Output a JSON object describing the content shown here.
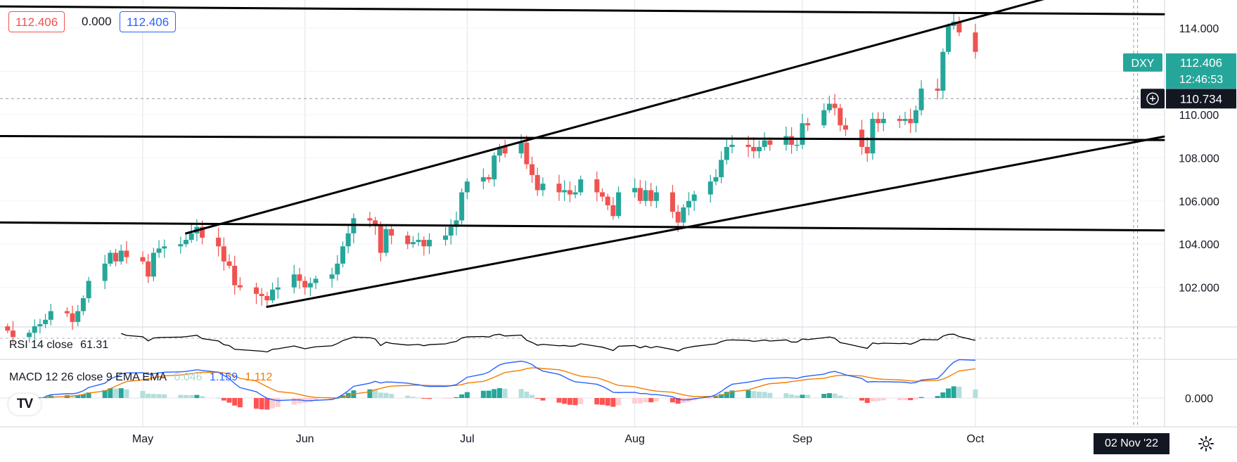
{
  "header": {
    "close_badge": "112.406",
    "spread": "0.000",
    "ask_badge": "112.406"
  },
  "colors": {
    "up": "#26a69a",
    "down": "#ef5350",
    "macd_line": "#2962ff",
    "signal_line": "#f57c00",
    "trendline": "#000000",
    "axis_text": "#131722"
  },
  "chart_data": [
    {
      "type": "candlestick",
      "symbol": "DXY",
      "last_price": "112.406",
      "countdown": "12:46:53",
      "crosshair_price": "110.734",
      "crosshair_date": "02 Nov '22",
      "x_tick_labels": [
        "May",
        "Jun",
        "Jul",
        "Aug",
        "Sep",
        "Oct"
      ],
      "x_tick_dates": [
        "2022-05-02",
        "2022-06-01",
        "2022-07-01",
        "2022-08-01",
        "2022-09-01",
        "2022-10-03"
      ],
      "y_tick_labels": [
        "114.000",
        "112.000",
        "110.000",
        "108.000",
        "106.000",
        "104.000",
        "102.000"
      ],
      "ylim": [
        100.2,
        115.3
      ],
      "grid": true,
      "date_range": [
        "2022-04-07",
        "2022-10-03"
      ],
      "closes": [
        100.0,
        99.7,
        99.9,
        100.2,
        100.3,
        100.5,
        100.9,
        100.8,
        100.4,
        100.9,
        101.5,
        102.3,
        103.1,
        103.6,
        103.2,
        103.7,
        103.4,
        103.2,
        102.5,
        103.6,
        103.8,
        103.9,
        104.0,
        104.2,
        104.5,
        104.8,
        104.3,
        103.9,
        103.2,
        103.0,
        102.1,
        102.0,
        101.7,
        101.6,
        101.4,
        101.9,
        102.0,
        102.6,
        102.3,
        102.0,
        102.2,
        102.4,
        102.6,
        103.1,
        103.9,
        104.5,
        105.2,
        105.1,
        104.9,
        103.6,
        104.7,
        104.4,
        104.0,
        104.1,
        104.2,
        103.9,
        104.2,
        104.4,
        104.8,
        105.1,
        106.4,
        106.9,
        107.1,
        107.0,
        108.1,
        108.5,
        108.2,
        108.7,
        107.7,
        107.2,
        106.5,
        106.8,
        106.4,
        106.5,
        106.3,
        106.4,
        107.0,
        106.4,
        106.2,
        105.8,
        105.3,
        106.4,
        106.6,
        106.0,
        106.5,
        106.0,
        106.4,
        105.5,
        105.0,
        105.7,
        106.0,
        106.3,
        106.9,
        107.1,
        107.9,
        108.5,
        108.6,
        108.5,
        108.3,
        108.5,
        108.8,
        108.6,
        109.0,
        108.6,
        108.6,
        109.6,
        109.5,
        110.2,
        110.5,
        110.3,
        109.5,
        109.3,
        108.5,
        108.2,
        109.8,
        109.6,
        109.8,
        109.7,
        109.8,
        109.6,
        110.2,
        111.2,
        111.1,
        112.9,
        114.1,
        114.3,
        113.8,
        112.9,
        112.3,
        112.0,
        112.406
      ]
    },
    {
      "type": "line",
      "name": "RSI 14 close",
      "value_label": "61.31"
    },
    {
      "type": "histogram",
      "name": "MACD 12 26 close 9 EMA EMA",
      "value_labels": [
        "0.046",
        "1.159",
        "1.112"
      ],
      "y_tick_labels": [
        "0.000"
      ]
    }
  ]
}
